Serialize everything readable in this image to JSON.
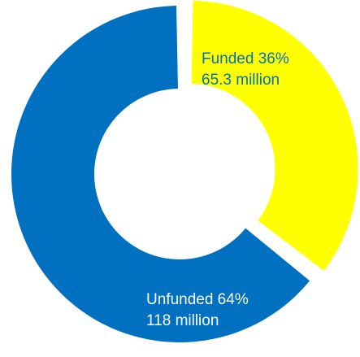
{
  "chart_data": {
    "type": "pie",
    "style": "donut",
    "title": "",
    "categories": [
      "Funded",
      "Unfunded"
    ],
    "values": [
      65.3,
      118
    ],
    "percent": [
      36,
      64
    ],
    "colors": [
      "#FFFF00",
      "#0070C0"
    ],
    "label_colors": [
      "#0070C0",
      "#FFFFFF"
    ],
    "exploded": "Funded",
    "labels": [
      {
        "line1": "Funded 36%",
        "line2": "65.3 million"
      },
      {
        "line1": "Unfunded 64%",
        "line2": "118 million"
      }
    ],
    "legend": "none"
  }
}
